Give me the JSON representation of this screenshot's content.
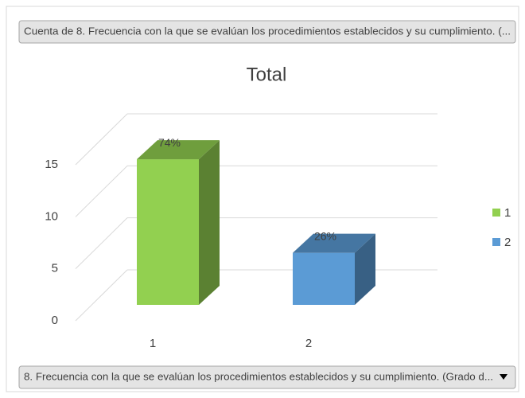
{
  "chart_data": {
    "type": "bar3d",
    "header": "Cuenta de 8.   Frecuencia con la que se evalúan los procedimientos establecidos y su cumplimiento. (...",
    "footer": "8.  Frecuencia con la que se evalúan los procedimientos establecidos y su cumplimiento. (Grado d...",
    "title": "Total",
    "categories": [
      "1",
      "2"
    ],
    "values": [
      14,
      5
    ],
    "value_labels": [
      "74%",
      "26%"
    ],
    "colors": [
      "#92d050",
      "#5b9bd5"
    ],
    "ylim": [
      0,
      15
    ],
    "yticks": [
      0,
      5,
      10,
      15
    ],
    "grid": true,
    "legend": "right"
  }
}
